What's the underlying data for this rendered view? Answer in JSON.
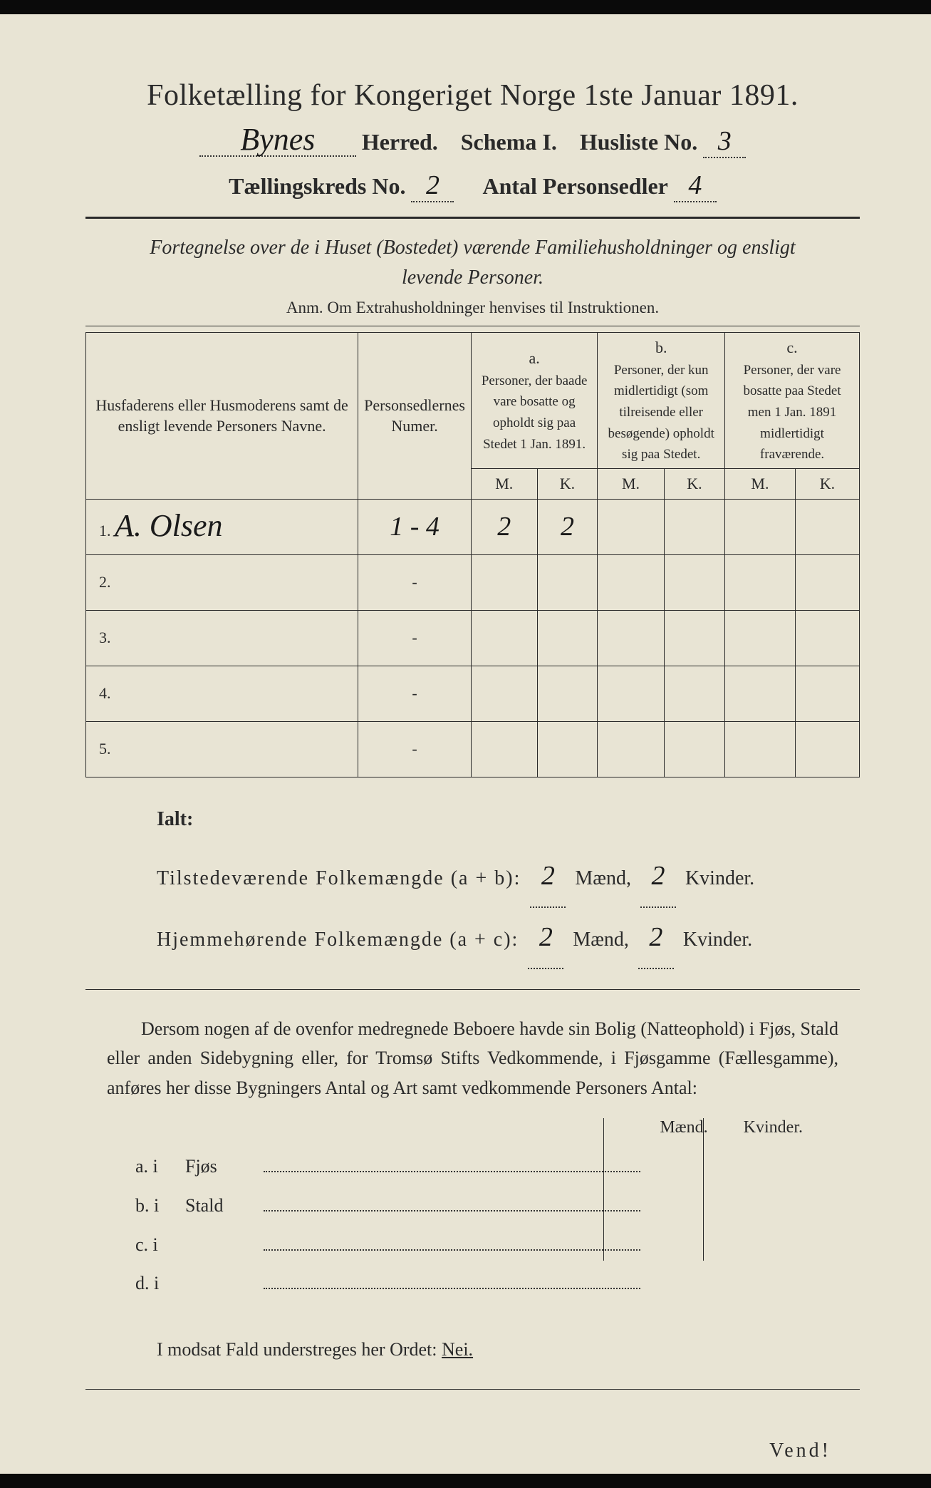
{
  "title": "Folketælling for Kongeriget Norge 1ste Januar 1891.",
  "header": {
    "herred_value": "Bynes",
    "herred_label": "Herred.",
    "schema_label": "Schema I.",
    "husliste_label": "Husliste No.",
    "husliste_value": "3",
    "kreds_label": "Tællingskreds No.",
    "kreds_value": "2",
    "antal_label": "Antal Personsedler",
    "antal_value": "4"
  },
  "section1": {
    "title_line1": "Fortegnelse over de i Huset (Bostedet) værende Familiehusholdninger og ensligt",
    "title_line2": "levende Personer.",
    "anm": "Anm.  Om Extrahusholdninger henvises til Instruktionen."
  },
  "table": {
    "col_name": "Husfaderens eller Husmoderens samt de ensligt levende Personers Navne.",
    "col_num": "Personsedlernes Numer.",
    "col_a_head": "a.",
    "col_a": "Personer, der baade vare bosatte og opholdt sig paa Stedet 1 Jan. 1891.",
    "col_b_head": "b.",
    "col_b": "Personer, der kun midlertidigt (som tilreisende eller besøgende) opholdt sig paa Stedet.",
    "col_c_head": "c.",
    "col_c": "Personer, der vare bosatte paa Stedet men 1 Jan. 1891 midlertidigt fraværende.",
    "m": "M.",
    "k": "K.",
    "rows": [
      {
        "n": "1.",
        "name": "A. Olsen",
        "num": "1 - 4",
        "a_m": "2",
        "a_k": "2"
      },
      {
        "n": "2.",
        "name": "",
        "num": "-",
        "a_m": "",
        "a_k": ""
      },
      {
        "n": "3.",
        "name": "",
        "num": "-",
        "a_m": "",
        "a_k": ""
      },
      {
        "n": "4.",
        "name": "",
        "num": "-",
        "a_m": "",
        "a_k": ""
      },
      {
        "n": "5.",
        "name": "",
        "num": "-",
        "a_m": "",
        "a_k": ""
      }
    ]
  },
  "totals": {
    "ialt": "Ialt:",
    "line1_label": "Tilstedeværende Folkemængde (a + b):",
    "line1_m": "2",
    "maend": "Mænd,",
    "line1_k": "2",
    "kvinder": "Kvinder.",
    "line2_label": "Hjemmehørende Folkemængde (a + c):",
    "line2_m": "2",
    "line2_k": "2"
  },
  "para": "Dersom nogen af de ovenfor medregnede Beboere havde sin Bolig (Natteophold) i Fjøs, Stald eller anden Sidebygning eller, for Tromsø Stifts Vedkommende, i Fjøsgamme (Fællesgamme), anføres her disse Bygningers Antal og Art samt vedkommende Personers Antal:",
  "bygning": {
    "maend": "Mænd.",
    "kvinder": "Kvinder.",
    "rows": [
      {
        "l": "a.  i",
        "t": "Fjøs"
      },
      {
        "l": "b.  i",
        "t": "Stald"
      },
      {
        "l": "c.  i",
        "t": ""
      },
      {
        "l": "d.  i",
        "t": ""
      }
    ]
  },
  "modsat": {
    "pre": "I modsat Fald understreges her Ordet:",
    "nei": "Nei."
  },
  "vend": "Vend!",
  "colors": {
    "paper": "#e8e4d4",
    "ink": "#2a2a2a",
    "hand": "#1a1a1a"
  }
}
